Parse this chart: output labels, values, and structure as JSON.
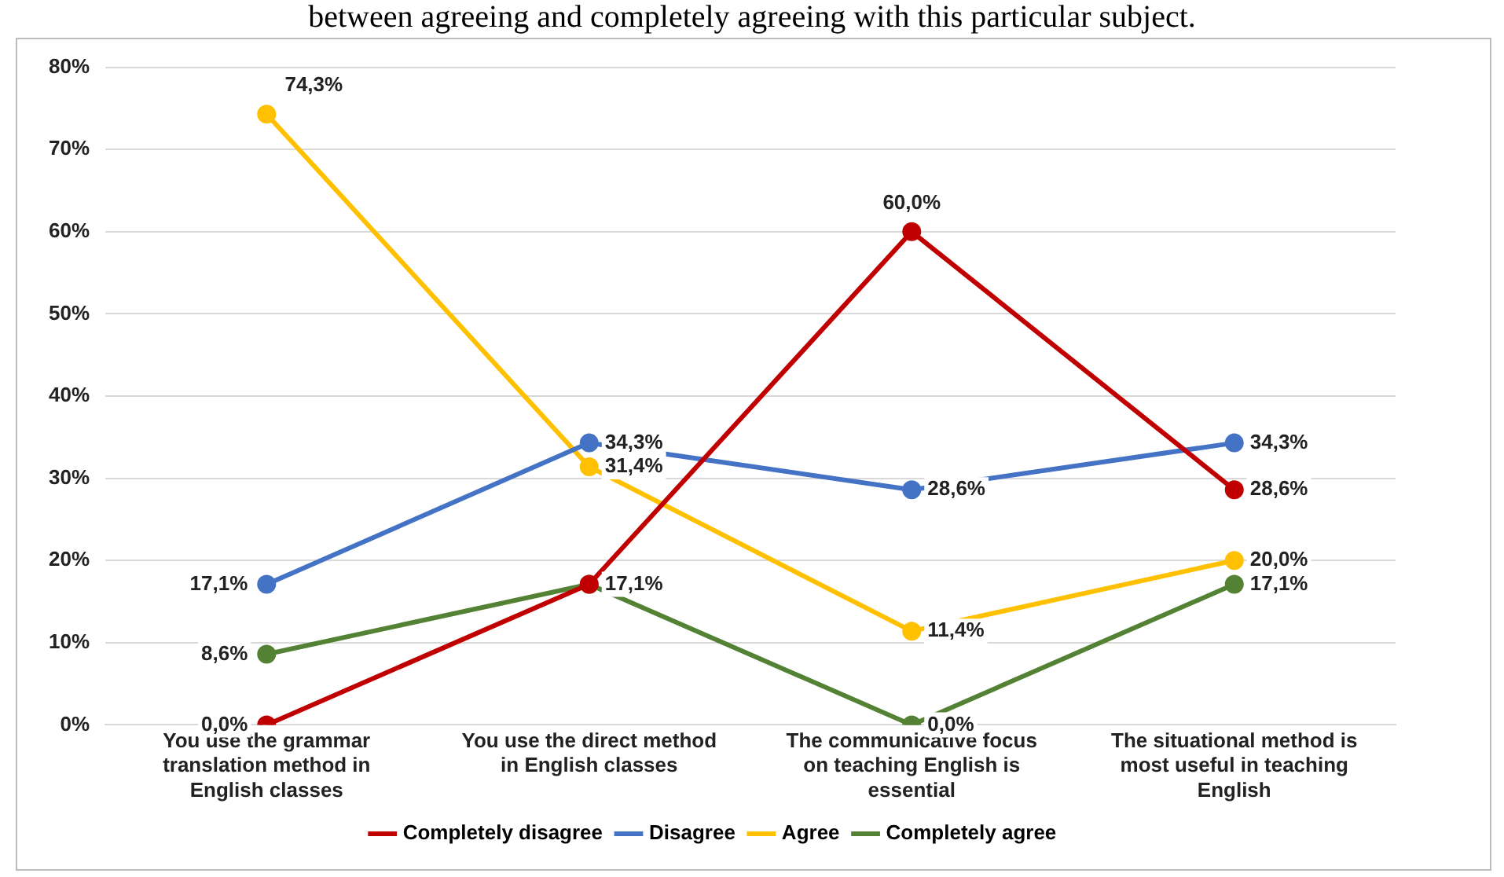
{
  "chart_data": {
    "type": "line",
    "annotations": [
      "between agreeing and completely agreeing with this particular subject."
    ],
    "categories": [
      "You use the grammar translation method in English classes",
      "You use the direct method in English classes",
      "The communicative focus on teaching English is essential",
      "The situational method is most useful in teaching English"
    ],
    "series": [
      {
        "name": "Completely disagree",
        "color": "#c00000",
        "values": [
          0,
          17.1,
          60,
          28.6
        ],
        "value_labels": [
          "0,0%",
          null,
          "60,0%",
          "28,6%"
        ]
      },
      {
        "name": "Disagree",
        "color": "#4472c4",
        "values": [
          17.1,
          34.3,
          28.6,
          34.3
        ],
        "value_labels": [
          "17,1%",
          "34,3%",
          "28,6%",
          "34,3%"
        ]
      },
      {
        "name": "Agree",
        "color": "#ffc000",
        "values": [
          74.3,
          31.4,
          11.4,
          20
        ],
        "value_labels": [
          "74,3%",
          "31,4%",
          "11,4%",
          "20,0%"
        ]
      },
      {
        "name": "Completely agree",
        "color": "#548235",
        "values": [
          8.6,
          17.1,
          0,
          17.1
        ],
        "value_labels": [
          "8,6%",
          "17,1%",
          "0,0%",
          "17,1%"
        ]
      }
    ],
    "ylim": [
      0,
      80
    ],
    "yticks": [
      {
        "value": 0,
        "label": "0%"
      },
      {
        "value": 10,
        "label": "10%"
      },
      {
        "value": 20,
        "label": "20%"
      },
      {
        "value": 30,
        "label": "30%"
      },
      {
        "value": 40,
        "label": "40%"
      },
      {
        "value": 50,
        "label": "50%"
      },
      {
        "value": 60,
        "label": "60%"
      },
      {
        "value": 70,
        "label": "70%"
      },
      {
        "value": 80,
        "label": "80%"
      }
    ],
    "grid": "y",
    "legend": "bottom",
    "marker": "circle",
    "line_style": "solid"
  }
}
